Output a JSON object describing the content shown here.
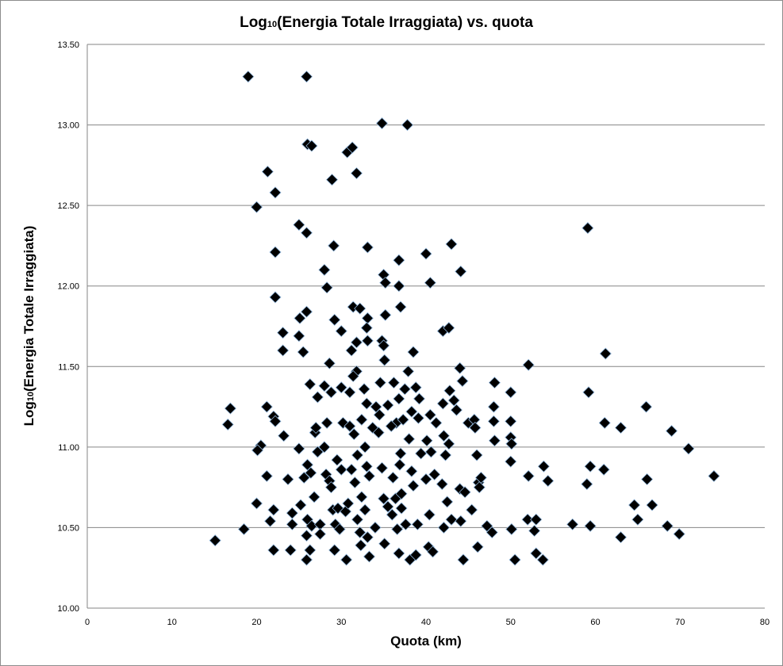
{
  "chart_data": {
    "type": "scatter",
    "title_main": "Log",
    "title_sub": "10",
    "title_rest": "(Energia Totale Irraggiata) vs. quota",
    "xlabel": "Quota  (km)",
    "ylabel_main": "Log",
    "ylabel_sub": "10",
    "ylabel_rest": "(Energia Totale Irraggiata)",
    "xlim": [
      0,
      80
    ],
    "ylim": [
      10.0,
      13.5
    ],
    "xticks": [
      "0",
      "10",
      "20",
      "30",
      "40",
      "50",
      "60",
      "70",
      "80"
    ],
    "yticks": [
      "10.00",
      "10.50",
      "11.00",
      "11.50",
      "12.00",
      "12.50",
      "13.00",
      "13.50"
    ],
    "grid": "horizontal",
    "legend": "none",
    "marker": "diamond",
    "marker_color": "#000000",
    "marker_edge": "#8fb4d9",
    "points": [
      [
        19,
        13.3
      ],
      [
        25.9,
        13.3
      ],
      [
        34.8,
        13.01
      ],
      [
        37.8,
        13.0
      ],
      [
        26,
        12.88
      ],
      [
        26.5,
        12.87
      ],
      [
        30.7,
        12.83
      ],
      [
        31.3,
        12.86
      ],
      [
        21.3,
        12.71
      ],
      [
        31.8,
        12.7
      ],
      [
        28.9,
        12.66
      ],
      [
        22.2,
        12.58
      ],
      [
        20,
        12.49
      ],
      [
        59.1,
        12.36
      ],
      [
        25,
        12.38
      ],
      [
        25.9,
        12.33
      ],
      [
        29.1,
        12.25
      ],
      [
        33.1,
        12.24
      ],
      [
        22.2,
        12.21
      ],
      [
        40,
        12.2
      ],
      [
        43,
        12.26
      ],
      [
        36.8,
        12.16
      ],
      [
        35,
        12.07
      ],
      [
        44.1,
        12.09
      ],
      [
        35.2,
        12.02
      ],
      [
        36.8,
        12.0
      ],
      [
        40.5,
        12.02
      ],
      [
        28,
        12.1
      ],
      [
        28.3,
        11.99
      ],
      [
        22.2,
        11.93
      ],
      [
        37,
        11.87
      ],
      [
        25.9,
        11.84
      ],
      [
        31.4,
        11.87
      ],
      [
        32.2,
        11.86
      ],
      [
        35.2,
        11.82
      ],
      [
        29.2,
        11.79
      ],
      [
        25.1,
        11.8
      ],
      [
        33.1,
        11.8
      ],
      [
        42,
        11.72
      ],
      [
        42.7,
        11.74
      ],
      [
        23.1,
        11.71
      ],
      [
        30,
        11.72
      ],
      [
        33,
        11.74
      ],
      [
        25,
        11.69
      ],
      [
        34.8,
        11.66
      ],
      [
        31.8,
        11.65
      ],
      [
        33.1,
        11.66
      ],
      [
        35,
        11.63
      ],
      [
        61.2,
        11.58
      ],
      [
        23.1,
        11.6
      ],
      [
        25.5,
        11.59
      ],
      [
        31.2,
        11.6
      ],
      [
        38.5,
        11.59
      ],
      [
        35.1,
        11.54
      ],
      [
        28.6,
        11.52
      ],
      [
        31.8,
        11.47
      ],
      [
        37.9,
        11.47
      ],
      [
        44,
        11.49
      ],
      [
        52.1,
        11.51
      ],
      [
        31.4,
        11.44
      ],
      [
        34.6,
        11.4
      ],
      [
        26.3,
        11.39
      ],
      [
        28,
        11.38
      ],
      [
        30,
        11.37
      ],
      [
        32.7,
        11.36
      ],
      [
        36.2,
        11.4
      ],
      [
        37.5,
        11.36
      ],
      [
        38.8,
        11.37
      ],
      [
        42.8,
        11.35
      ],
      [
        44.3,
        11.41
      ],
      [
        48.1,
        11.4
      ],
      [
        50,
        11.34
      ],
      [
        59.2,
        11.34
      ],
      [
        27.2,
        11.31
      ],
      [
        28.8,
        11.34
      ],
      [
        31,
        11.34
      ],
      [
        33,
        11.27
      ],
      [
        34.5,
        11.2
      ],
      [
        36.8,
        11.3
      ],
      [
        39.2,
        11.3
      ],
      [
        42,
        11.27
      ],
      [
        43.3,
        11.29
      ],
      [
        35.5,
        11.26
      ],
      [
        38.3,
        11.22
      ],
      [
        40.5,
        11.2
      ],
      [
        32.4,
        11.17
      ],
      [
        36.5,
        11.15
      ],
      [
        16.9,
        11.24
      ],
      [
        16.6,
        11.14
      ],
      [
        21.2,
        11.25
      ],
      [
        22,
        11.19
      ],
      [
        22.2,
        11.16
      ],
      [
        23.2,
        11.07
      ],
      [
        20.5,
        11.01
      ],
      [
        20.1,
        10.98
      ],
      [
        21.2,
        10.82
      ],
      [
        20,
        10.65
      ],
      [
        18.5,
        10.49
      ],
      [
        15.1,
        10.42
      ],
      [
        21.6,
        10.54
      ],
      [
        22,
        10.61
      ],
      [
        22,
        10.36
      ],
      [
        24,
        10.36
      ],
      [
        23.7,
        10.8
      ],
      [
        24.2,
        10.59
      ],
      [
        24.2,
        10.52
      ],
      [
        25,
        10.99
      ],
      [
        25.2,
        10.64
      ],
      [
        25.6,
        10.81
      ],
      [
        26,
        10.89
      ],
      [
        26.4,
        10.84
      ],
      [
        26,
        10.55
      ],
      [
        25.9,
        10.45
      ],
      [
        26.5,
        10.51
      ],
      [
        26.3,
        10.36
      ],
      [
        25.9,
        10.3
      ],
      [
        26.8,
        10.69
      ],
      [
        26.9,
        11.09
      ],
      [
        27,
        11.12
      ],
      [
        27.2,
        10.97
      ],
      [
        27.5,
        10.52
      ],
      [
        27.5,
        10.46
      ],
      [
        28,
        11.0
      ],
      [
        28.2,
        10.83
      ],
      [
        28.3,
        11.15
      ],
      [
        28.6,
        10.79
      ],
      [
        28.8,
        10.75
      ],
      [
        29,
        10.61
      ],
      [
        29.2,
        10.36
      ],
      [
        29.3,
        10.52
      ],
      [
        29.5,
        10.92
      ],
      [
        29.6,
        10.62
      ],
      [
        29.8,
        10.49
      ],
      [
        30,
        10.86
      ],
      [
        30.2,
        11.15
      ],
      [
        30.5,
        10.6
      ],
      [
        30.6,
        10.3
      ],
      [
        30.8,
        10.65
      ],
      [
        31,
        11.13
      ],
      [
        31.2,
        10.86
      ],
      [
        31.5,
        11.08
      ],
      [
        31.6,
        10.78
      ],
      [
        31.9,
        10.95
      ],
      [
        31.9,
        10.55
      ],
      [
        32.2,
        10.47
      ],
      [
        32.3,
        10.39
      ],
      [
        32.4,
        10.69
      ],
      [
        32.8,
        11.0
      ],
      [
        32.8,
        10.61
      ],
      [
        33,
        10.88
      ],
      [
        33.1,
        10.44
      ],
      [
        33.3,
        10.32
      ],
      [
        33.3,
        10.82
      ],
      [
        33.7,
        11.12
      ],
      [
        34,
        10.5
      ],
      [
        34.1,
        11.25
      ],
      [
        34.4,
        11.09
      ],
      [
        34.8,
        10.87
      ],
      [
        35,
        10.68
      ],
      [
        35.1,
        10.4
      ],
      [
        35.5,
        10.63
      ],
      [
        35.9,
        11.13
      ],
      [
        36,
        10.58
      ],
      [
        36.1,
        10.81
      ],
      [
        36.4,
        10.68
      ],
      [
        36.6,
        10.49
      ],
      [
        36.8,
        10.34
      ],
      [
        36.9,
        10.89
      ],
      [
        37,
        10.96
      ],
      [
        37.1,
        10.71
      ],
      [
        37.1,
        10.62
      ],
      [
        37.3,
        11.17
      ],
      [
        37.6,
        10.52
      ],
      [
        38,
        11.05
      ],
      [
        38.1,
        10.3
      ],
      [
        38.3,
        10.85
      ],
      [
        38.5,
        10.76
      ],
      [
        38.8,
        10.33
      ],
      [
        39,
        10.52
      ],
      [
        39.1,
        11.18
      ],
      [
        39.4,
        10.96
      ],
      [
        40,
        10.8
      ],
      [
        40.1,
        11.04
      ],
      [
        40.3,
        10.38
      ],
      [
        40.4,
        10.58
      ],
      [
        40.6,
        10.97
      ],
      [
        40.8,
        10.35
      ],
      [
        41,
        10.83
      ],
      [
        41.2,
        11.15
      ],
      [
        41.9,
        10.77
      ],
      [
        42.1,
        10.5
      ],
      [
        42.1,
        11.07
      ],
      [
        42.3,
        10.95
      ],
      [
        42.5,
        10.66
      ],
      [
        42.7,
        11.02
      ],
      [
        43,
        10.55
      ],
      [
        43.6,
        11.23
      ],
      [
        44,
        10.74
      ],
      [
        44.1,
        10.54
      ],
      [
        44.4,
        10.3
      ],
      [
        44.6,
        10.72
      ],
      [
        45,
        11.15
      ],
      [
        45.4,
        10.61
      ],
      [
        45.7,
        11.17
      ],
      [
        45.8,
        11.12
      ],
      [
        46,
        10.95
      ],
      [
        46.1,
        10.38
      ],
      [
        46.2,
        10.78
      ],
      [
        46.5,
        10.81
      ],
      [
        46.3,
        10.75
      ],
      [
        47.2,
        10.51
      ],
      [
        47.8,
        10.47
      ],
      [
        48,
        11.25
      ],
      [
        48,
        11.16
      ],
      [
        48.1,
        11.04
      ],
      [
        50,
        11.16
      ],
      [
        50,
        11.06
      ],
      [
        50.1,
        11.02
      ],
      [
        50,
        10.91
      ],
      [
        50.1,
        10.49
      ],
      [
        50.5,
        10.3
      ],
      [
        52,
        10.55
      ],
      [
        52.1,
        10.82
      ],
      [
        52.8,
        10.48
      ],
      [
        53,
        10.55
      ],
      [
        53,
        10.34
      ],
      [
        53.8,
        10.3
      ],
      [
        53.9,
        10.88
      ],
      [
        54.4,
        10.79
      ],
      [
        57.3,
        10.52
      ],
      [
        59,
        10.77
      ],
      [
        59.4,
        10.88
      ],
      [
        59.4,
        10.51
      ],
      [
        61,
        10.86
      ],
      [
        61.1,
        11.15
      ],
      [
        63,
        10.44
      ],
      [
        63,
        11.12
      ],
      [
        64.6,
        10.64
      ],
      [
        65,
        10.55
      ],
      [
        66,
        11.25
      ],
      [
        66.1,
        10.8
      ],
      [
        66.7,
        10.64
      ],
      [
        68.5,
        10.51
      ],
      [
        69,
        11.1
      ],
      [
        69.9,
        10.46
      ],
      [
        71,
        10.99
      ],
      [
        74,
        10.82
      ]
    ]
  }
}
